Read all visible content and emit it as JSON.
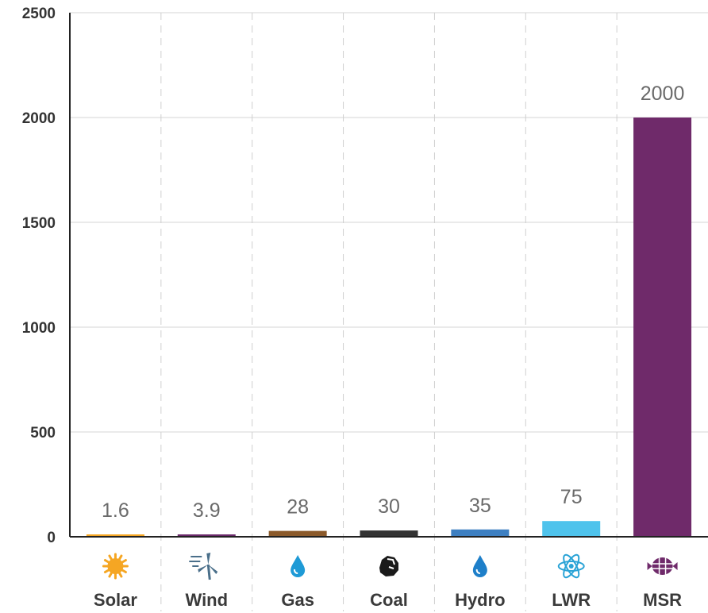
{
  "chart_data": {
    "type": "bar",
    "title": "",
    "xlabel": "",
    "ylabel": "",
    "ylim": [
      0,
      2500
    ],
    "yticks": [
      0,
      500,
      1000,
      1500,
      2000,
      2500
    ],
    "grid": true,
    "categories": [
      "Solar",
      "Wind",
      "Gas",
      "Coal",
      "Hydro",
      "LWR",
      "MSR"
    ],
    "values": [
      1.6,
      3.9,
      28,
      30,
      35,
      75,
      2000
    ],
    "value_labels": [
      "1.6",
      "3.9",
      "28",
      "30",
      "35",
      "75",
      "2000"
    ],
    "colors": [
      "#f5a623",
      "#6b2a6b",
      "#8b5a2b",
      "#333333",
      "#3d7fc1",
      "#4fc3ec",
      "#6f2a6a"
    ],
    "icons": [
      "sun-icon",
      "wind-turbine-icon",
      "gas-drop-icon",
      "coal-lump-icon",
      "water-drop-icon",
      "atom-icon",
      "molten-salt-reactor-icon"
    ],
    "icon_colors": [
      "#f5a623",
      "#4a6f8a",
      "#1e9ad6",
      "#1a1a1a",
      "#1e7fc9",
      "#2aa3d6",
      "#6f2a6a"
    ]
  }
}
